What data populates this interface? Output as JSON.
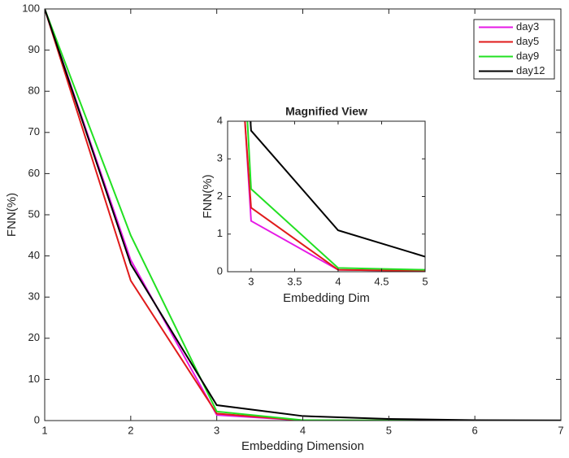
{
  "chart_data": [
    {
      "type": "line",
      "xlabel": "Embedding Dimension",
      "ylabel": "FNN(%)",
      "x": [
        1,
        2,
        3,
        4,
        5,
        6,
        7
      ],
      "series": [
        {
          "name": "day3",
          "color": "#e619e6",
          "values": [
            100,
            39,
            1.35,
            0.05,
            0.02,
            0,
            0
          ]
        },
        {
          "name": "day5",
          "color": "#e01b1b",
          "values": [
            100,
            34,
            1.7,
            0.05,
            0.02,
            0,
            0
          ]
        },
        {
          "name": "day9",
          "color": "#22e022",
          "values": [
            100,
            45,
            2.2,
            0.1,
            0.05,
            0,
            0
          ]
        },
        {
          "name": "day12",
          "color": "#000000",
          "values": [
            100,
            38,
            3.75,
            1.1,
            0.4,
            0.1,
            0.05
          ]
        }
      ],
      "xlim": [
        1,
        7
      ],
      "ylim": [
        0,
        100
      ],
      "xticks": [
        1,
        2,
        3,
        4,
        5,
        6,
        7
      ],
      "yticks": [
        0,
        10,
        20,
        30,
        40,
        50,
        60,
        70,
        80,
        90,
        100
      ],
      "legend": "upper right",
      "grid": false
    },
    {
      "type": "line",
      "title": "Magnified View",
      "xlabel": "Embedding Dim",
      "ylabel": "FNN(%)",
      "xlim": [
        2.73,
        5
      ],
      "ylim": [
        0,
        4
      ],
      "xticks": [
        3,
        3.5,
        4,
        4.5,
        5
      ],
      "yticks": [
        0,
        1,
        2,
        3,
        4
      ],
      "grid": false
    }
  ]
}
